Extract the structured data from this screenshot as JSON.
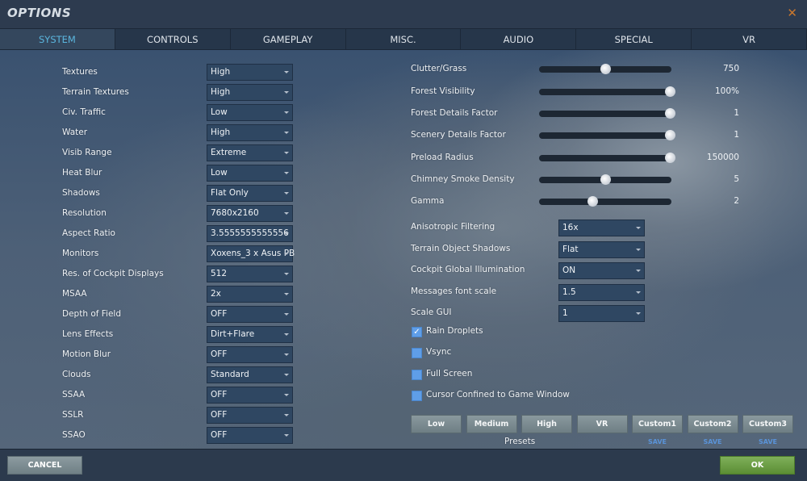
{
  "window": {
    "title": "OPTIONS",
    "close_icon": "close-x-icon"
  },
  "tabs": [
    {
      "label": "SYSTEM",
      "active": true
    },
    {
      "label": "CONTROLS"
    },
    {
      "label": "GAMEPLAY"
    },
    {
      "label": "MISC."
    },
    {
      "label": "AUDIO"
    },
    {
      "label": "SPECIAL"
    },
    {
      "label": "VR"
    }
  ],
  "left_settings": [
    {
      "label": "Textures",
      "value": "High"
    },
    {
      "label": "Terrain Textures",
      "value": "High"
    },
    {
      "label": "Civ. Traffic",
      "value": "Low"
    },
    {
      "label": "Water",
      "value": "High"
    },
    {
      "label": "Visib Range",
      "value": "Extreme"
    },
    {
      "label": "Heat Blur",
      "value": "Low"
    },
    {
      "label": "Shadows",
      "value": "Flat Only"
    },
    {
      "label": "Resolution",
      "value": "7680x2160"
    },
    {
      "label": "Aspect Ratio",
      "value": "3.5555555555556"
    },
    {
      "label": "Monitors",
      "value": "Xoxens_3 x Asus PB"
    },
    {
      "label": "Res. of Cockpit Displays",
      "value": "512"
    },
    {
      "label": "MSAA",
      "value": "2x"
    },
    {
      "label": "Depth of Field",
      "value": "OFF"
    },
    {
      "label": "Lens Effects",
      "value": "Dirt+Flare"
    },
    {
      "label": "Motion Blur",
      "value": "OFF"
    },
    {
      "label": "Clouds",
      "value": "Standard"
    },
    {
      "label": "SSAA",
      "value": "OFF"
    },
    {
      "label": "SSLR",
      "value": "OFF"
    },
    {
      "label": "SSAO",
      "value": "OFF"
    }
  ],
  "sliders": [
    {
      "label": "Clutter/Grass",
      "value": "750",
      "level": 0.5
    },
    {
      "label": "Forest Visibility",
      "value": "100%",
      "level": 1.0
    },
    {
      "label": "Forest Details Factor",
      "value": "1",
      "level": 1.0
    },
    {
      "label": "Scenery Details Factor",
      "value": "1",
      "level": 1.0
    },
    {
      "label": "Preload Radius",
      "value": "150000",
      "level": 1.0
    },
    {
      "label": "Chimney Smoke Density",
      "value": "5",
      "level": 0.5
    },
    {
      "label": "Gamma",
      "value": "2",
      "level": 0.4
    }
  ],
  "right_settings": [
    {
      "label": "Anisotropic Filtering",
      "value": "16x"
    },
    {
      "label": "Terrain Object Shadows",
      "value": "Flat"
    },
    {
      "label": "Cockpit Global Illumination",
      "value": "ON"
    },
    {
      "label": "Messages font scale",
      "value": "1.5"
    },
    {
      "label": "Scale GUI",
      "value": "1"
    }
  ],
  "checkboxes": [
    {
      "label": "Rain Droplets",
      "checked": true
    },
    {
      "label": "Vsync",
      "checked": false
    },
    {
      "label": "Full Screen",
      "checked": false
    },
    {
      "label": "Cursor Confined to Game Window",
      "checked": false
    }
  ],
  "presets": {
    "label": "Presets",
    "buttons": [
      "Low",
      "Medium",
      "High",
      "VR",
      "Custom1",
      "Custom2",
      "Custom3"
    ],
    "save_label": "SAVE"
  },
  "footer": {
    "cancel": "CANCEL",
    "ok": "OK"
  },
  "colors": {
    "accent_tab": "#5bb6de",
    "ok_green": "#6a9e45",
    "checkbox_blue": "#5f9ee8",
    "close_orange": "#c8772e"
  }
}
